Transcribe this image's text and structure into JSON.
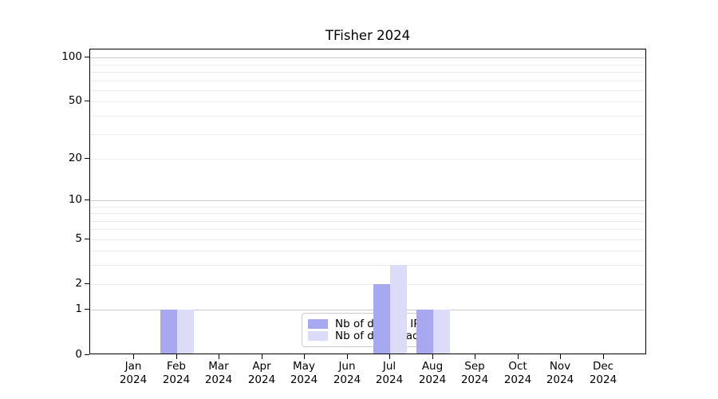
{
  "chart_data": {
    "type": "bar",
    "title": "TFisher 2024",
    "year_label": "2024",
    "categories": [
      "Jan",
      "Feb",
      "Mar",
      "Apr",
      "May",
      "Jun",
      "Jul",
      "Aug",
      "Sep",
      "Oct",
      "Nov",
      "Dec"
    ],
    "series": [
      {
        "name": "Nb of distinct IPs",
        "color": "#a8a8f0",
        "values": [
          0,
          1,
          0,
          0,
          0,
          0,
          2,
          1,
          0,
          0,
          0,
          0
        ]
      },
      {
        "name": "Nb of downloads",
        "color": "#dcdcf8",
        "values": [
          0,
          1,
          0,
          0,
          0,
          0,
          3,
          1,
          0,
          0,
          0,
          0
        ]
      }
    ],
    "yticks": [
      0,
      1,
      2,
      5,
      10,
      20,
      50,
      100
    ],
    "scale": "log1p",
    "ylim": [
      0,
      115
    ],
    "grid": true,
    "major_gridlines": [
      1,
      10,
      100
    ],
    "minor_gridlines": [
      2,
      3,
      4,
      5,
      6,
      7,
      8,
      9,
      20,
      30,
      40,
      50,
      60,
      70,
      80,
      90
    ],
    "legend_position": "lower center",
    "colors": {
      "major_grid": "#c8c8c8",
      "minor_grid": "#ececec",
      "axis": "#000000",
      "text": "#000000",
      "legend_border": "#cccccc"
    }
  }
}
